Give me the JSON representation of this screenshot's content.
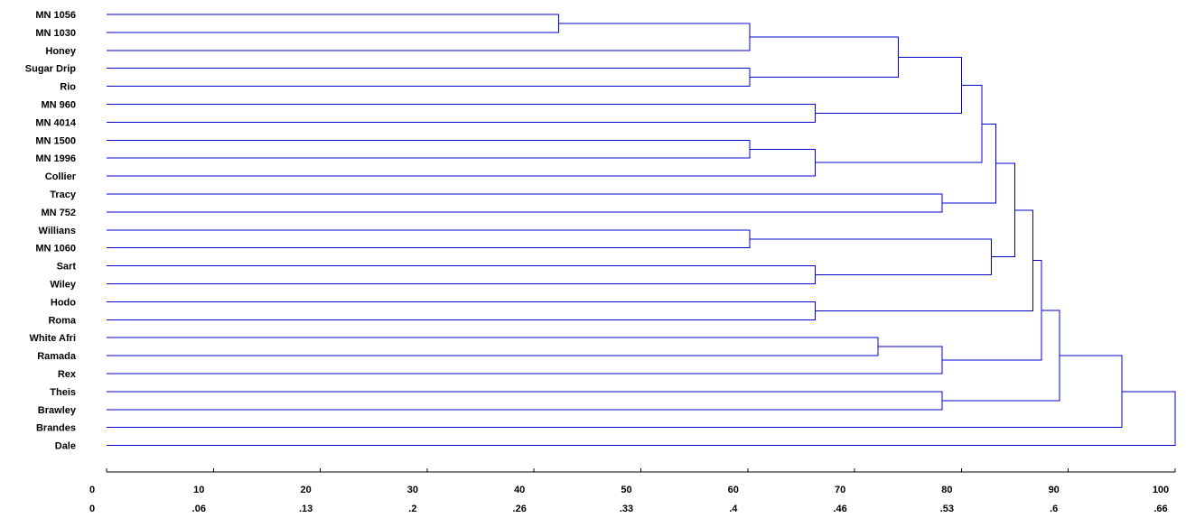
{
  "chart_data": {
    "type": "dendrogram",
    "leaves": [
      "MN 1056",
      "MN 1030",
      "Honey",
      "Sugar Drip",
      "Rio",
      "MN 960",
      "MN 4014",
      "MN 1500",
      "MN 1996",
      "Collier",
      "Tracy",
      "MN 752",
      "Willians",
      "MN 1060",
      "Sart",
      "Wiley",
      "Hodo",
      "Roma",
      "White Afri",
      "Ramada",
      "Rex",
      "Theis",
      "Brawley",
      "Brandes",
      "Dale"
    ],
    "merges": [
      {
        "id": "c1",
        "left": "MN 1056",
        "right": "MN 1030",
        "height": 42.3
      },
      {
        "id": "c2",
        "left": "c1",
        "right": "Honey",
        "height": 60.2
      },
      {
        "id": "c3",
        "left": "Sugar Drip",
        "right": "Rio",
        "height": 60.2
      },
      {
        "id": "c4",
        "left": "c2",
        "right": "c3",
        "height": 74.1
      },
      {
        "id": "c5",
        "left": "MN 960",
        "right": "MN 4014",
        "height": 66.3
      },
      {
        "id": "c6",
        "left": "c4",
        "right": "c5",
        "height": 80.0
      },
      {
        "id": "c7",
        "left": "MN 1500",
        "right": "MN 1996",
        "height": 60.2
      },
      {
        "id": "c8",
        "left": "c7",
        "right": "Collier",
        "height": 66.3
      },
      {
        "id": "c9",
        "left": "c6",
        "right": "c8",
        "height": 81.9
      },
      {
        "id": "c10",
        "left": "Tracy",
        "right": "MN 752",
        "height": 78.2
      },
      {
        "id": "c11",
        "left": "c9",
        "right": "c10",
        "height": 83.2
      },
      {
        "id": "c12",
        "left": "Willians",
        "right": "MN 1060",
        "height": 60.2
      },
      {
        "id": "c13",
        "left": "Sart",
        "right": "Wiley",
        "height": 66.3
      },
      {
        "id": "c14",
        "left": "c12",
        "right": "c13",
        "height": 82.8
      },
      {
        "id": "c15",
        "left": "c11",
        "right": "c14",
        "height": 85.0
      },
      {
        "id": "c16",
        "left": "Hodo",
        "right": "Roma",
        "height": 66.3
      },
      {
        "id": "c17",
        "left": "c15",
        "right": "c16",
        "height": 86.7
      },
      {
        "id": "c18",
        "left": "White Afri",
        "right": "Ramada",
        "height": 72.2
      },
      {
        "id": "c19",
        "left": "c18",
        "right": "Rex",
        "height": 78.2
      },
      {
        "id": "c20",
        "left": "c17",
        "right": "c19",
        "height": 87.5
      },
      {
        "id": "c21",
        "left": "Theis",
        "right": "Brawley",
        "height": 78.2
      },
      {
        "id": "c22",
        "left": "c20",
        "right": "c21",
        "height": 89.2
      },
      {
        "id": "c23",
        "left": "c22",
        "right": "Brandes",
        "height": 95.0
      },
      {
        "id": "c24",
        "left": "c23",
        "right": "Dale",
        "height": 100.0
      }
    ],
    "xlim": [
      0,
      100
    ],
    "axis_ticks": [
      {
        "value": 0,
        "primary": "0",
        "secondary": "0"
      },
      {
        "value": 10,
        "primary": "10",
        "secondary": ".06"
      },
      {
        "value": 20,
        "primary": "20",
        "secondary": ".13"
      },
      {
        "value": 30,
        "primary": "30",
        "secondary": ".2"
      },
      {
        "value": 40,
        "primary": "40",
        "secondary": ".26"
      },
      {
        "value": 50,
        "primary": "50",
        "secondary": ".33"
      },
      {
        "value": 60,
        "primary": "60",
        "secondary": ".4"
      },
      {
        "value": 70,
        "primary": "70",
        "secondary": ".46"
      },
      {
        "value": 80,
        "primary": "80",
        "secondary": ".53"
      },
      {
        "value": 90,
        "primary": "90",
        "secondary": ".6"
      },
      {
        "value": 100,
        "primary": "100",
        "secondary": ".66"
      }
    ],
    "line_color": "#0000cc",
    "text_color": "#000000"
  }
}
